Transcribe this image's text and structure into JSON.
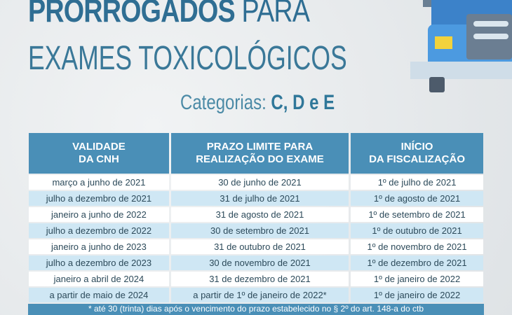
{
  "title": {
    "line1_bold": "PRORROGADOS",
    "line1_rest": " PARA",
    "line2": "EXAMES TOXICOLÓGICOS"
  },
  "categories": {
    "label": "Categorias: ",
    "value": "C, D e E"
  },
  "table": {
    "headers": [
      [
        "VALIDADE",
        "DA CNH"
      ],
      [
        "PRAZO LIMITE PARA",
        "REALIZAÇÃO DO EXAME"
      ],
      [
        "INÍCIO",
        "DA FISCALIZAÇÃO"
      ]
    ],
    "rows": [
      [
        "março a junho de 2021",
        "30 de junho de 2021",
        "1º de julho de 2021"
      ],
      [
        "julho a dezembro de 2021",
        "31 de julho de 2021",
        "1º de agosto de 2021"
      ],
      [
        "janeiro a junho de 2022",
        "31 de agosto de 2021",
        "1º de setembro de 2021"
      ],
      [
        "julho a dezembro de 2022",
        "30 de setembro de 2021",
        "1º de outubro de 2021"
      ],
      [
        "janeiro a junho de 2023",
        "31 de outubro de 2021",
        "1º de novembro de 2021"
      ],
      [
        "julho a dezembro de 2023",
        "30 de novembro de 2021",
        "1º de dezembro de 2021"
      ],
      [
        "janeiro a abril de 2024",
        "31 de dezembro de 2021",
        "1º de janeiro de 2022"
      ],
      [
        "a partir de maio de 2024",
        "a partir de 1º de janeiro de 2022*",
        "1º de janeiro de 2022"
      ]
    ]
  },
  "footnote": "* até 30 (trinta) dias após o vencimento do prazo estabelecido no § 2º do art. 148-a do ctb",
  "colors": {
    "title": "#2f6e93",
    "header": "#4a8fb7",
    "row_alt": "#cfe7f4"
  },
  "icons": {
    "illustration": "truck-icon"
  }
}
